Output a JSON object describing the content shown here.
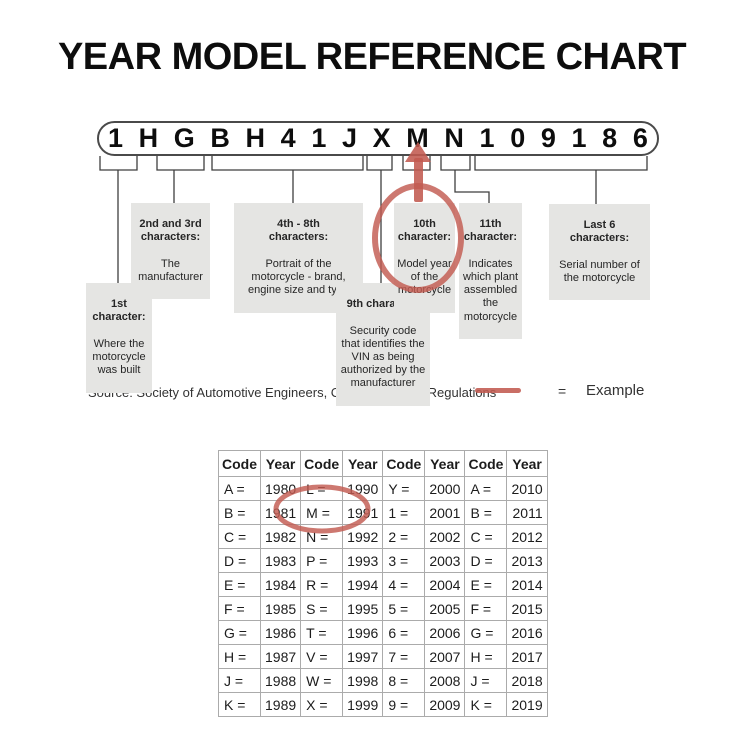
{
  "title": "YEAR MODEL REFERENCE CHART",
  "vin": {
    "characters": [
      "1",
      "H",
      "G",
      "B",
      "H",
      "4",
      "1",
      "J",
      "X",
      "M",
      "N",
      "1",
      "0",
      "9",
      "1",
      "8",
      "6"
    ]
  },
  "callouts": [
    {
      "heading": "1st\ncharacter:",
      "body": "Where the\nmotorcycle\nwas built"
    },
    {
      "heading": "2nd and 3rd\ncharacters:",
      "body": "The\nmanufacturer"
    },
    {
      "heading": "4th - 8th\ncharacters:",
      "body": "Portrait of the\nmotorcycle - brand,\nengine size and type"
    },
    {
      "heading": "9th character:",
      "body": "Security code\nthat identifies the\nVIN as being\nauthorized by the\nmanufacturer"
    },
    {
      "heading": "10th\ncharacter:",
      "body": "Model year\nof the\nmotorcycle"
    },
    {
      "heading": "11th\ncharacter:",
      "body": "Indicates\nwhich plant\nassembled\nthe\nmotorcycle"
    },
    {
      "heading": "Last 6\ncharacters:",
      "body": "Serial number of\nthe motorcycle"
    }
  ],
  "legend": {
    "source": "Source:  Society of Automotive Engineers, Code of Federal Regulations",
    "equals": "=",
    "example": "Example"
  },
  "highlights": {
    "circled_vin_character": "M",
    "circled_table_value": "M = 1991"
  },
  "table": {
    "headers": [
      "Code",
      "Year",
      "Code",
      "Year",
      "Code",
      "Year",
      "Code",
      "Year"
    ],
    "rows": [
      [
        "A =",
        "1980",
        "L =",
        "1990",
        "Y =",
        "2000",
        "A =",
        "2010"
      ],
      [
        "B =",
        "1981",
        "M =",
        "1991",
        "1 =",
        "2001",
        "B =",
        "2011"
      ],
      [
        "C =",
        "1982",
        "N =",
        "1992",
        "2 =",
        "2002",
        "C =",
        "2012"
      ],
      [
        "D =",
        "1983",
        "P =",
        "1993",
        "3 =",
        "2003",
        "D =",
        "2013"
      ],
      [
        "E =",
        "1984",
        "R =",
        "1994",
        "4 =",
        "2004",
        "E =",
        "2014"
      ],
      [
        "F =",
        "1985",
        "S =",
        "1995",
        "5 =",
        "2005",
        "F =",
        "2015"
      ],
      [
        "G =",
        "1986",
        "T =",
        "1996",
        "6 =",
        "2006",
        "G =",
        "2016"
      ],
      [
        "H =",
        "1987",
        "V =",
        "1997",
        "7 =",
        "2007",
        "H =",
        "2017"
      ],
      [
        "J =",
        "1988",
        "W =",
        "1998",
        "8 =",
        "2008",
        "J =",
        "2018"
      ],
      [
        "K =",
        "1989",
        "X =",
        "1999",
        "9 =",
        "2009",
        "K =",
        "2019"
      ]
    ]
  },
  "colors": {
    "accent_red": "#c25a50",
    "callout_gray": "#e5e5e3"
  }
}
